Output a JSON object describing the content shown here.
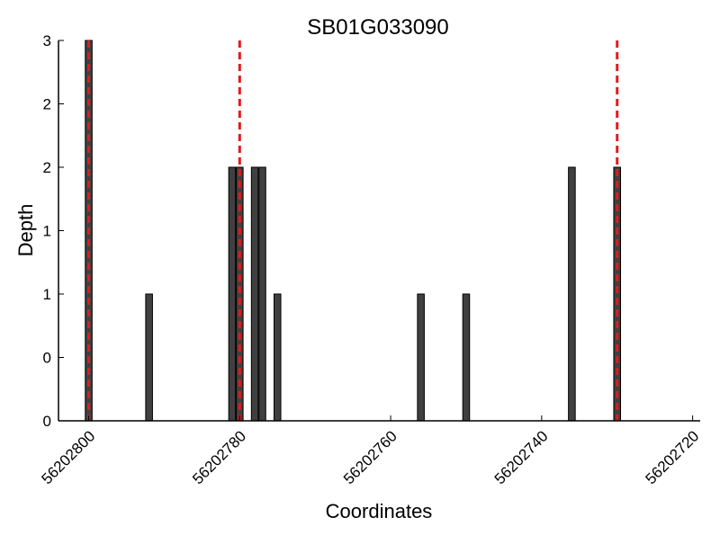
{
  "chart_data": {
    "type": "bar",
    "title": "SB01G033090",
    "xlabel": "Coordinates",
    "ylabel": "Depth",
    "x_axis_reversed": true,
    "xlim": [
      56202804,
      56202719
    ],
    "ylim": [
      0,
      3
    ],
    "xticks": [
      56202800,
      56202780,
      56202760,
      56202740,
      56202720
    ],
    "xtick_labels": [
      "56202800",
      "56202780",
      "56202760",
      "56202740",
      "56202720"
    ],
    "yticks": [
      0,
      0.5,
      1,
      1.5,
      2,
      2.5,
      3
    ],
    "ytick_labels": [
      "0",
      "0",
      "1",
      "1",
      "2",
      "2",
      "3"
    ],
    "grid": false,
    "bars": [
      {
        "x": 56202800,
        "depth": 3
      },
      {
        "x": 56202792,
        "depth": 1
      },
      {
        "x": 56202781,
        "depth": 2
      },
      {
        "x": 56202780,
        "depth": 2
      },
      {
        "x": 56202778,
        "depth": 2
      },
      {
        "x": 56202777,
        "depth": 2
      },
      {
        "x": 56202775,
        "depth": 1
      },
      {
        "x": 56202756,
        "depth": 1
      },
      {
        "x": 56202750,
        "depth": 1
      },
      {
        "x": 56202736,
        "depth": 2
      },
      {
        "x": 56202730,
        "depth": 2
      }
    ],
    "reference_lines": [
      56202800,
      56202780,
      56202730
    ],
    "colors": {
      "bar_fill": "#404040",
      "bar_edge": "#000000",
      "reference_line": "#e31a1c"
    }
  }
}
